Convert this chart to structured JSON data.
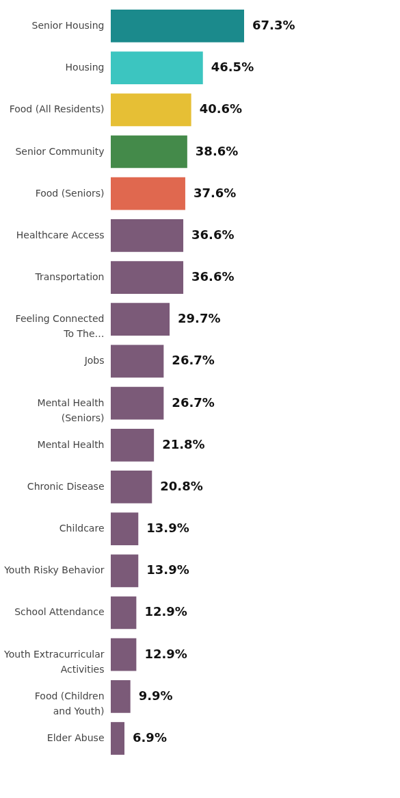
{
  "chart_data": {
    "type": "bar",
    "orientation": "horizontal",
    "categories": [
      "Senior Housing",
      "Housing",
      "Food (All Residents)",
      "Senior Community",
      "Food (Seniors)",
      "Healthcare Access",
      "Transportation",
      "Feeling Connected\nTo The…",
      "Jobs",
      "Mental Health\n(Seniors)",
      "Mental Health",
      "Chronic Disease",
      "Childcare",
      "Youth Risky Behavior",
      "School Attendance",
      "Youth Extracurricular\nActivities",
      "Food (Children\nand Youth)",
      "Elder Abuse"
    ],
    "values": [
      67.3,
      46.5,
      40.6,
      38.6,
      37.6,
      36.6,
      36.6,
      29.7,
      26.7,
      26.7,
      21.8,
      20.8,
      13.9,
      13.9,
      12.9,
      12.9,
      9.9,
      6.9
    ],
    "colors": [
      "#1b8a8c",
      "#3cc5c0",
      "#e6bf35",
      "#448a4a",
      "#e0684f",
      "#7b5a78",
      "#7b5a78",
      "#7b5a78",
      "#7b5a78",
      "#7b5a78",
      "#7b5a78",
      "#7b5a78",
      "#7b5a78",
      "#7b5a78",
      "#7b5a78",
      "#7b5a78",
      "#7b5a78",
      "#7b5a78"
    ],
    "value_labels": [
      "67.3%",
      "46.5%",
      "40.6%",
      "38.6%",
      "37.6%",
      "36.6%",
      "36.6%",
      "29.7%",
      "26.7%",
      "26.7%",
      "21.8%",
      "20.8%",
      "13.9%",
      "13.9%",
      "12.9%",
      "12.9%",
      "9.9%",
      "6.9%"
    ],
    "grid": false
  }
}
